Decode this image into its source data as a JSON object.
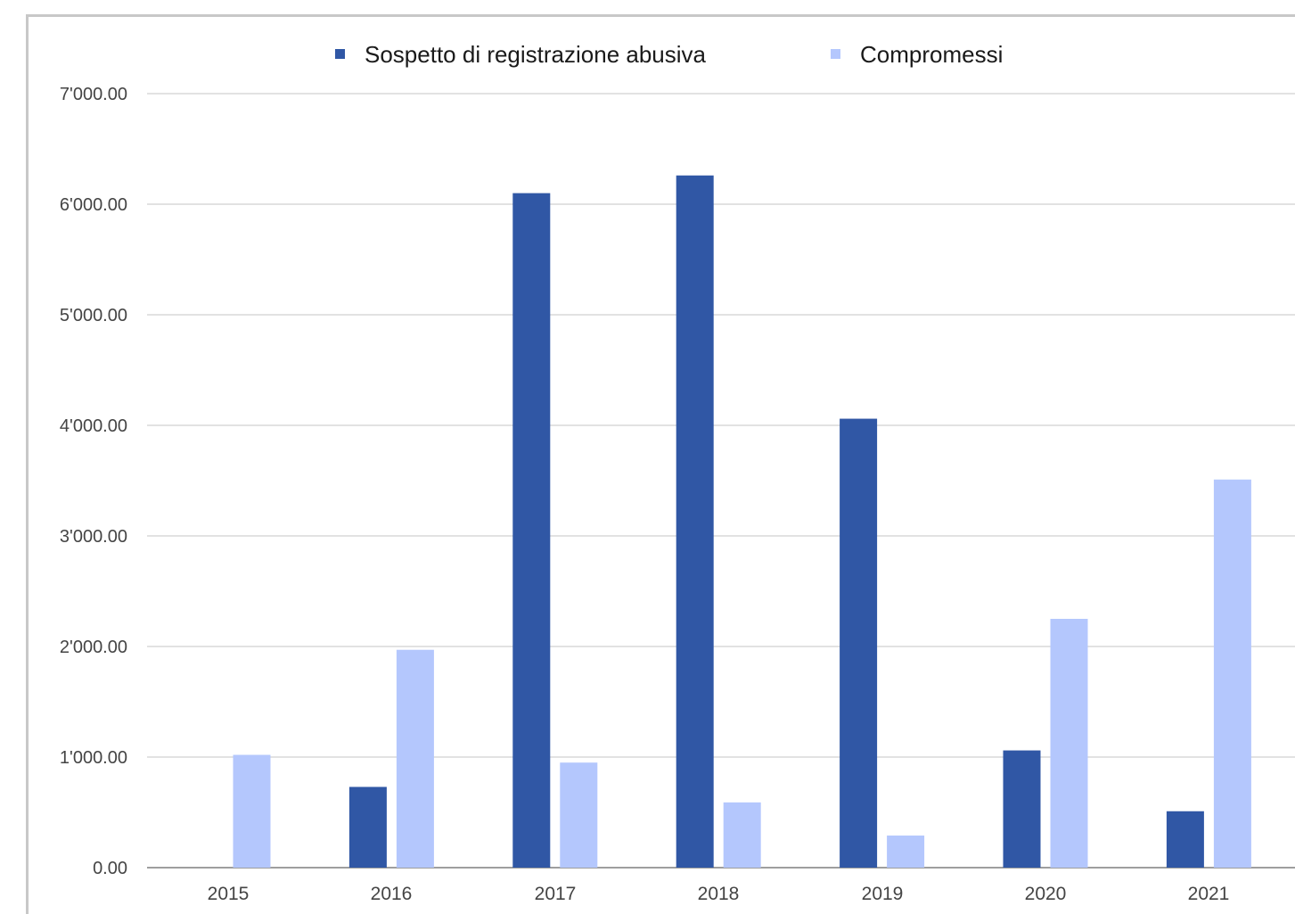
{
  "chart_data": {
    "type": "bar",
    "categories": [
      "2015",
      "2016",
      "2017",
      "2018",
      "2019",
      "2020",
      "2021"
    ],
    "series": [
      {
        "name": "Sospetto di registrazione abusiva",
        "color": "#3057a5",
        "values": [
          0,
          730,
          6100,
          6260,
          4060,
          1060,
          510
        ]
      },
      {
        "name": "Compromessi",
        "color": "#b4c7fd",
        "values": [
          1020,
          1970,
          950,
          590,
          290,
          2250,
          3510
        ]
      }
    ],
    "y_ticks": [
      "0.00",
      "1'000.00",
      "2'000.00",
      "3'000.00",
      "4'000.00",
      "5'000.00",
      "6'000.00",
      "7'000.00"
    ],
    "ylim": [
      0,
      7000
    ],
    "grid": true,
    "legend_position": "top-center",
    "title": "",
    "xlabel": "",
    "ylabel": ""
  }
}
